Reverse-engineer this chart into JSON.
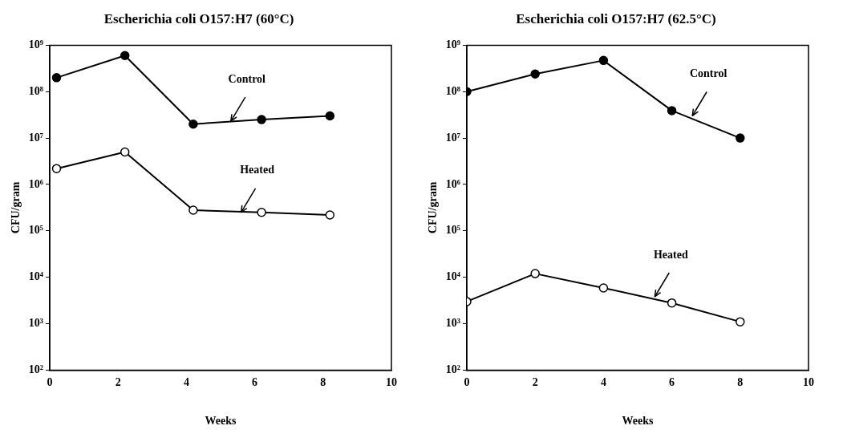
{
  "chart_data": [
    {
      "type": "line",
      "title": "Escherichia coli O157:H7 (60°C)",
      "xlabel": "Weeks",
      "ylabel": "CFU/gram",
      "log": "y",
      "grid": false,
      "legend": false,
      "marker": "circle",
      "line_style": "solid",
      "xlim": [
        0,
        10
      ],
      "xticks": [
        0,
        2,
        4,
        6,
        8,
        10
      ],
      "ylim": [
        100,
        1000000000
      ],
      "yticks": [
        {
          "value": 100,
          "label": "10²"
        },
        {
          "value": 1000,
          "label": "10³"
        },
        {
          "value": 10000,
          "label": "10⁴"
        },
        {
          "value": 100000,
          "label": "10⁵"
        },
        {
          "value": 1000000,
          "label": "10⁶"
        },
        {
          "value": 10000000,
          "label": "10⁷"
        },
        {
          "value": 100000000,
          "label": "10⁸"
        },
        {
          "value": 1000000000,
          "label": "10⁹"
        }
      ],
      "series": [
        {
          "color": "#000000",
          "x": [
            0.2,
            2.2,
            4.2,
            6.2,
            8.2
          ],
          "values": [
            200000000,
            600000000,
            20000000,
            25000000,
            30000000
          ]
        },
        {
          "color": "#000000",
          "x": [
            0.2,
            2.2,
            4.2,
            6.2,
            8.2
          ],
          "values": [
            2200000,
            5000000,
            280000,
            250000,
            220000
          ]
        }
      ],
      "annotations": [
        {
          "text": "Control",
          "x": 5.3,
          "y": 23000000
        },
        {
          "text": "Heated",
          "x": 5.6,
          "y": 250000
        }
      ]
    },
    {
      "type": "line",
      "title": "Escherichia coli O157:H7 (62.5°C)",
      "xlabel": "Weeks",
      "ylabel": "CFU/gram",
      "log": "y",
      "grid": false,
      "legend": false,
      "marker": "circle",
      "line_style": "solid",
      "xlim": [
        0,
        10
      ],
      "xticks": [
        0,
        2,
        4,
        6,
        8,
        10
      ],
      "ylim": [
        100,
        1000000000
      ],
      "yticks": [
        {
          "value": 100,
          "label": "10²"
        },
        {
          "value": 1000,
          "label": "10³"
        },
        {
          "value": 10000,
          "label": "10⁴"
        },
        {
          "value": 100000,
          "label": "10⁵"
        },
        {
          "value": 1000000,
          "label": "10⁶"
        },
        {
          "value": 10000000,
          "label": "10⁷"
        },
        {
          "value": 100000000,
          "label": "10⁸"
        },
        {
          "value": 1000000000,
          "label": "10⁹"
        }
      ],
      "series": [
        {
          "color": "#000000",
          "x": [
            0,
            2,
            4,
            6,
            8
          ],
          "values": [
            100000000,
            240000000,
            470000000,
            39000000,
            10000000
          ]
        },
        {
          "color": "#000000",
          "x": [
            0,
            2,
            4,
            6,
            8
          ],
          "values": [
            3000,
            12000,
            5900,
            2800,
            1100
          ]
        }
      ],
      "annotations": [
        {
          "text": "Control",
          "x": 6.6,
          "y": 30000000
        },
        {
          "text": "Heated",
          "x": 5.5,
          "y": 3800
        }
      ]
    }
  ]
}
